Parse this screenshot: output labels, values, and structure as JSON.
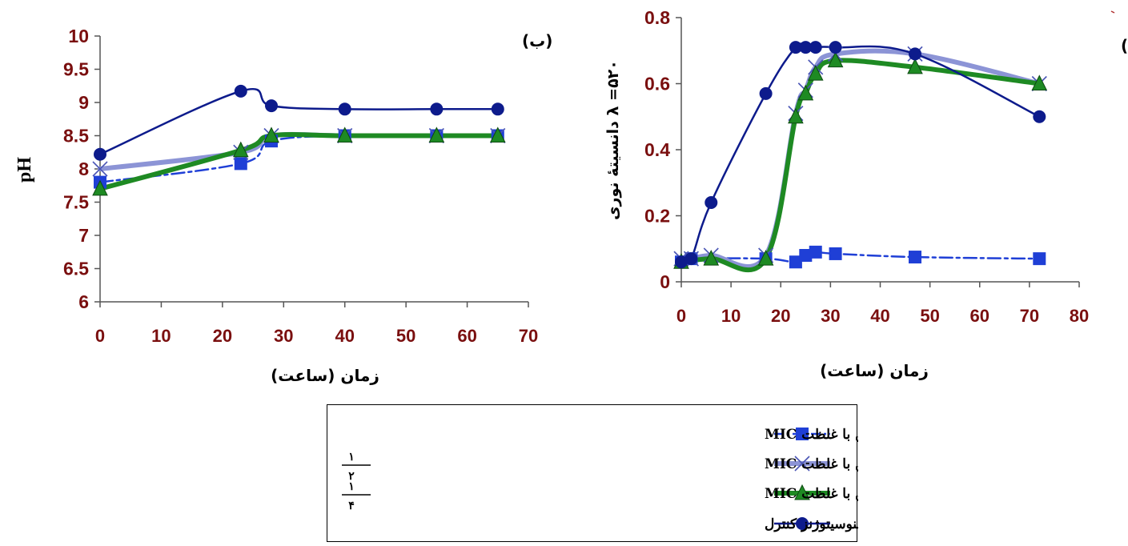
{
  "charts": [
    {
      "id": "right",
      "panel_label": "(الف)",
      "ylabel": "λ =۵۲۰ دانسیتهٔ نوری",
      "xlabel": "زمان (ساعت)",
      "xlim": [
        0,
        80
      ],
      "ylim": [
        0,
        0.8
      ],
      "xticks": [
        0,
        10,
        20,
        30,
        40,
        50,
        60,
        70,
        80
      ],
      "yticks": [
        0,
        0.2,
        0.4,
        0.6,
        0.8
      ],
      "ytick_labels": [
        "0",
        "0.2",
        "0.4",
        "0.6",
        "0.8"
      ]
    },
    {
      "id": "left",
      "panel_label": "(ب)",
      "ylabel": "pH",
      "xlabel": "زمان (ساعت)",
      "xlim": [
        0,
        70
      ],
      "ylim": [
        6,
        10
      ],
      "xticks": [
        0,
        10,
        20,
        30,
        40,
        50,
        60,
        70
      ],
      "yticks": [
        6,
        6.5,
        7,
        7.5,
        8,
        8.5,
        9,
        9.5,
        10
      ],
      "ytick_labels": [
        "6",
        "6.5",
        "7",
        "7.5",
        "8",
        "8.5",
        "9",
        "9.5",
        "10"
      ]
    }
  ],
  "chart_data": [
    {
      "type": "line",
      "series": [
        {
          "name": "لیستریا منوسیتوژنز در حضور نیزین با غلظت MIC",
          "color": "#1f3fd6",
          "marker": "square",
          "x": [
            0,
            2,
            17,
            23,
            25,
            27,
            31,
            47,
            72
          ],
          "y": [
            0.06,
            0.07,
            0.07,
            0.06,
            0.08,
            0.09,
            0.085,
            0.075,
            0.07
          ]
        },
        {
          "name": "لیستریا منوسیتوژنز در حضور نیزین با غلظت ۱/۲ MIC",
          "color": "#8c94d6",
          "marker": "x",
          "x": [
            0,
            2,
            6,
            17,
            23,
            25,
            27,
            31,
            47,
            72
          ],
          "y": [
            0.07,
            0.07,
            0.08,
            0.08,
            0.51,
            0.58,
            0.65,
            0.69,
            0.69,
            0.6
          ]
        },
        {
          "name": "لیستریا منوسیتوژنز در حضور نیزین با غلظت ۱/۴ MIC",
          "color": "#1e8a23",
          "marker": "triangle",
          "x": [
            0,
            6,
            17,
            23,
            25,
            27,
            31,
            47,
            72
          ],
          "y": [
            0.06,
            0.07,
            0.07,
            0.5,
            0.57,
            0.63,
            0.67,
            0.65,
            0.6
          ]
        },
        {
          "name": "لیستریا منوسیتوژنز کنترل",
          "color": "#0d1b8c",
          "marker": "circle",
          "x": [
            0,
            2,
            6,
            17,
            23,
            25,
            27,
            31,
            47,
            72
          ],
          "y": [
            0.06,
            0.07,
            0.24,
            0.57,
            0.71,
            0.71,
            0.71,
            0.71,
            0.69,
            0.5
          ]
        }
      ]
    },
    {
      "type": "line",
      "series": [
        {
          "name": "لیستریا منوسیتوژنز در حضور نیزین با غلظت MIC",
          "color": "#1f3fd6",
          "marker": "square",
          "x": [
            0,
            23,
            28,
            40,
            55,
            65
          ],
          "y": [
            7.8,
            8.08,
            8.42,
            8.5,
            8.5,
            8.5
          ]
        },
        {
          "name": "لیستریا منوسیتوژنز در حضور نیزین با غلظت ۱/۲ MIC",
          "color": "#8c94d6",
          "marker": "x",
          "x": [
            0,
            23,
            28,
            40,
            55,
            65
          ],
          "y": [
            8.0,
            8.25,
            8.5,
            8.5,
            8.5,
            8.5
          ]
        },
        {
          "name": "لیستریا منوسیتوژنز در حضور نیزین با غلظت ۱/۴ MIC",
          "color": "#1e8a23",
          "marker": "triangle",
          "x": [
            0,
            23,
            28,
            40,
            55,
            65
          ],
          "y": [
            7.7,
            8.28,
            8.5,
            8.5,
            8.5,
            8.5
          ]
        },
        {
          "name": "لیستریا منوسیتوژنز کنترل",
          "color": "#0d1b8c",
          "marker": "circle",
          "x": [
            0,
            23,
            28,
            40,
            55,
            65
          ],
          "y": [
            8.22,
            9.17,
            8.95,
            8.9,
            8.9,
            8.9
          ]
        }
      ]
    }
  ],
  "legend": {
    "items": [
      {
        "text": "لیستریا منوسیتوژنز در حضور نیزین با غلظت MIC",
        "fraction": ""
      },
      {
        "text": "لیستریا منوسیتوژنز در حضور نیزین با غلظت  MIC",
        "fraction": "۱/۲"
      },
      {
        "text": "لیستریا منوسیتوژنز در حضور نیزین با غلظت MIC",
        "fraction": "۱/۴"
      },
      {
        "text": "لیستریا منوسیتوژنز کنترل",
        "fraction": ""
      }
    ]
  },
  "colors": {
    "axis_text": "#7a0f0f",
    "axis_line": "#555555"
  }
}
